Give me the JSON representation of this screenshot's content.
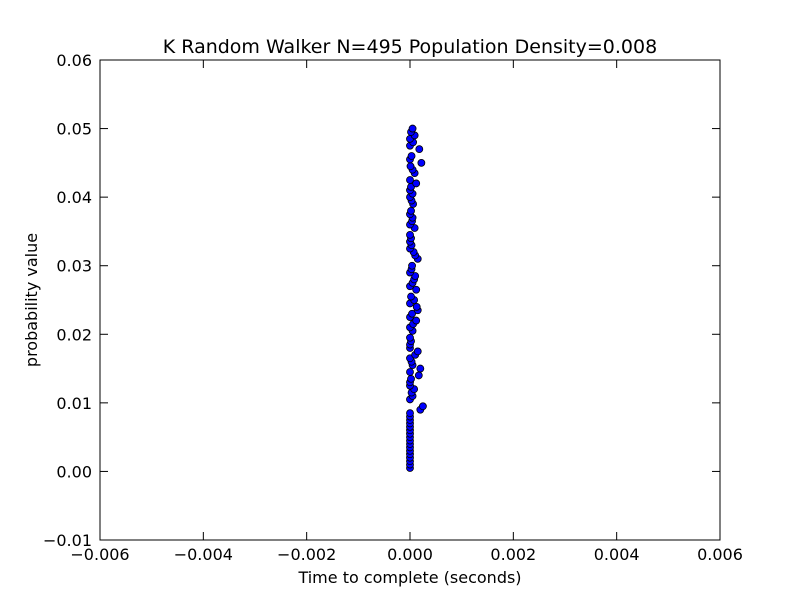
{
  "chart_data": {
    "type": "scatter",
    "title": "K Random Walker N=495 Population Density=0.008",
    "xlabel": "Time to complete (seconds)",
    "ylabel": "probability value",
    "xlim": [
      -0.006,
      0.006
    ],
    "ylim": [
      -0.01,
      0.06
    ],
    "xticks": [
      -0.006,
      -0.004,
      -0.002,
      0.0,
      0.002,
      0.004,
      0.006
    ],
    "xtick_labels": [
      "−0.006",
      "−0.004",
      "−0.002",
      "0.000",
      "0.002",
      "0.004",
      "0.006"
    ],
    "yticks": [
      -0.01,
      0.0,
      0.01,
      0.02,
      0.03,
      0.04,
      0.05,
      0.06
    ],
    "ytick_labels": [
      "−0.01",
      "0.00",
      "0.01",
      "0.02",
      "0.03",
      "0.04",
      "0.05",
      "0.06"
    ],
    "grid": false,
    "marker_color": "#0000ff",
    "marker_edge_color": "#000000",
    "series": [
      {
        "points": [
          [
            0.0,
            0.0005
          ],
          [
            0.0,
            0.001
          ],
          [
            0.0,
            0.0015
          ],
          [
            0.0,
            0.002
          ],
          [
            0.0,
            0.0025
          ],
          [
            0.0,
            0.003
          ],
          [
            0.0,
            0.0035
          ],
          [
            0.0,
            0.004
          ],
          [
            0.0,
            0.0045
          ],
          [
            0.0,
            0.005
          ],
          [
            0.0,
            0.0055
          ],
          [
            0.0,
            0.006
          ],
          [
            0.0,
            0.0065
          ],
          [
            0.0,
            0.007
          ],
          [
            0.0,
            0.0075
          ],
          [
            0.0,
            0.008
          ],
          [
            0.0,
            0.0085
          ],
          [
            0.0002,
            0.009
          ],
          [
            0.00025,
            0.0095
          ],
          [
            0.0,
            0.0105
          ],
          [
            5e-05,
            0.011
          ],
          [
            3e-05,
            0.0115
          ],
          [
            8e-05,
            0.012
          ],
          [
            0.0,
            0.0125
          ],
          [
            0.0,
            0.013
          ],
          [
            2e-05,
            0.0135
          ],
          [
            0.00017,
            0.014
          ],
          [
            0.0,
            0.0145
          ],
          [
            0.0002,
            0.015
          ],
          [
            5e-05,
            0.0155
          ],
          [
            3e-05,
            0.016
          ],
          [
            0.0,
            0.0165
          ],
          [
            0.0001,
            0.017
          ],
          [
            0.00015,
            0.0175
          ],
          [
            0.0,
            0.018
          ],
          [
            0.0,
            0.0185
          ],
          [
            2e-05,
            0.019
          ],
          [
            0.0,
            0.0195
          ],
          [
            5e-05,
            0.0205
          ],
          [
            0.0,
            0.021
          ],
          [
            6e-05,
            0.0215
          ],
          [
            0.00012,
            0.022
          ],
          [
            0.0,
            0.0225
          ],
          [
            4e-05,
            0.023
          ],
          [
            0.00015,
            0.0235
          ],
          [
            0.00013,
            0.024
          ],
          [
            0.0,
            0.0245
          ],
          [
            8e-05,
            0.025
          ],
          [
            2e-05,
            0.0255
          ],
          [
            0.00012,
            0.0265
          ],
          [
            0.0,
            0.027
          ],
          [
            5e-05,
            0.0275
          ],
          [
            8e-05,
            0.028
          ],
          [
            0.0001,
            0.0285
          ],
          [
            0.0,
            0.029
          ],
          [
            3e-05,
            0.0295
          ],
          [
            4e-05,
            0.03
          ],
          [
            0.00015,
            0.031
          ],
          [
            0.0001,
            0.0315
          ],
          [
            7e-05,
            0.032
          ],
          [
            0.0,
            0.0325
          ],
          [
            3e-05,
            0.033
          ],
          [
            0.0,
            0.0335
          ],
          [
            2e-05,
            0.034
          ],
          [
            0.0,
            0.0345
          ],
          [
            9e-05,
            0.0355
          ],
          [
            0.0,
            0.036
          ],
          [
            4e-05,
            0.0365
          ],
          [
            5e-05,
            0.037
          ],
          [
            0.0,
            0.0375
          ],
          [
            2e-05,
            0.038
          ],
          [
            6e-05,
            0.039
          ],
          [
            3e-05,
            0.0395
          ],
          [
            0.0,
            0.04
          ],
          [
            5e-05,
            0.0405
          ],
          [
            0.0,
            0.041
          ],
          [
            2e-05,
            0.0415
          ],
          [
            0.00012,
            0.042
          ],
          [
            0.0,
            0.0425
          ],
          [
            9e-05,
            0.0435
          ],
          [
            5e-05,
            0.044
          ],
          [
            1e-05,
            0.0445
          ],
          [
            0.00022,
            0.045
          ],
          [
            0.0,
            0.0455
          ],
          [
            3e-05,
            0.046
          ],
          [
            0.00018,
            0.047
          ],
          [
            0.0,
            0.0475
          ],
          [
            6e-05,
            0.048
          ],
          [
            0.0,
            0.0485
          ],
          [
            9e-05,
            0.049
          ],
          [
            2e-05,
            0.0495
          ],
          [
            5e-05,
            0.05
          ]
        ]
      }
    ]
  }
}
